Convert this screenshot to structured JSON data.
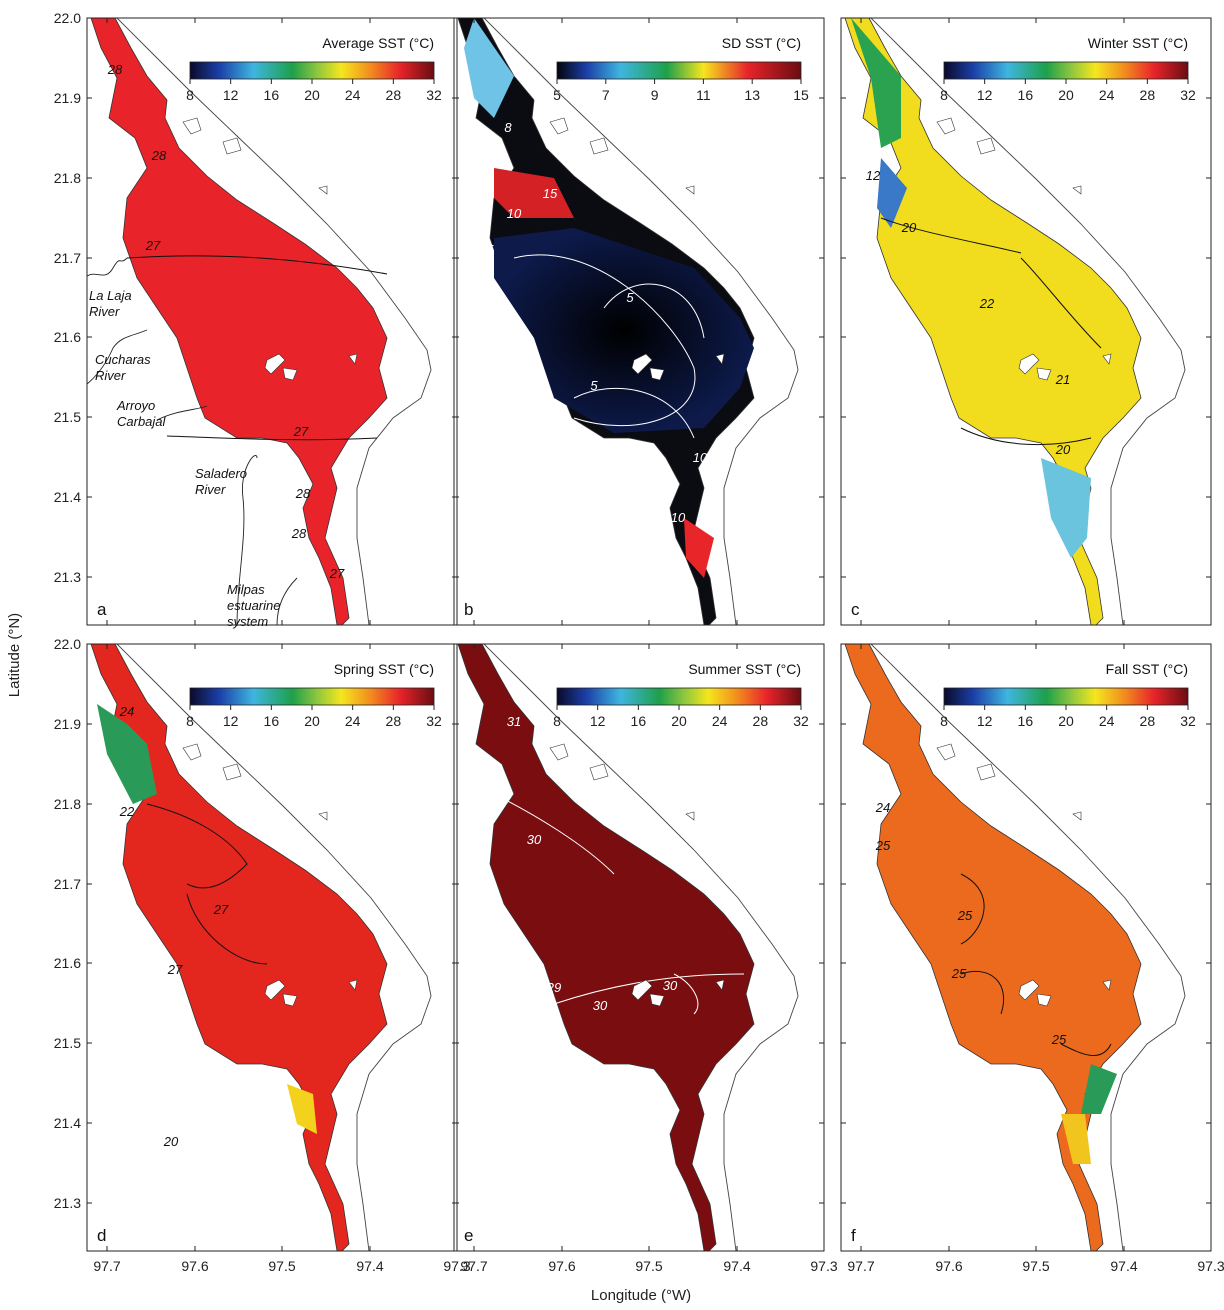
{
  "figure": {
    "y_axis_title": "Latitude (°N)",
    "x_axis_title": "Longitude (°W)",
    "lat_ticks": [
      "22.0",
      "21.9",
      "21.8",
      "21.7",
      "21.6",
      "21.5",
      "21.4",
      "21.3"
    ],
    "lon_ticks": [
      "97.7",
      "97.6",
      "97.5",
      "97.4",
      "97.3"
    ]
  },
  "panels": [
    {
      "letter": "a",
      "title": "Average SST (°C)",
      "ticks": [
        "8",
        "12",
        "16",
        "20",
        "24",
        "28",
        "32"
      ],
      "palette": "sst",
      "fill": "#e8242a",
      "contours": [
        "28",
        "28",
        "27",
        "27",
        "28",
        "28",
        "27"
      ]
    },
    {
      "letter": "b",
      "title": "SD SST (°C)",
      "ticks": [
        "5",
        "7",
        "9",
        "11",
        "13",
        "15"
      ],
      "palette": "sd",
      "fill": "#0b0b12",
      "contours": [
        "8",
        "15",
        "10",
        "5",
        "5",
        "5",
        "10",
        "10"
      ]
    },
    {
      "letter": "c",
      "title": "Winter SST (°C)",
      "ticks": [
        "8",
        "12",
        "16",
        "20",
        "24",
        "28",
        "32"
      ],
      "palette": "sst",
      "fill": "#f2dc1e",
      "contours": [
        "12",
        "20",
        "22",
        "21",
        "20"
      ]
    },
    {
      "letter": "d",
      "title": "Spring SST (°C)",
      "ticks": [
        "8",
        "12",
        "16",
        "20",
        "24",
        "28",
        "32"
      ],
      "palette": "sst",
      "fill": "#e3261e",
      "contours": [
        "24",
        "22",
        "27",
        "27",
        "20"
      ]
    },
    {
      "letter": "e",
      "title": "Summer SST (°C)",
      "ticks": [
        "8",
        "12",
        "16",
        "20",
        "24",
        "28",
        "32"
      ],
      "palette": "sst",
      "fill": "#7a0d10",
      "contours": [
        "31",
        "30",
        "29",
        "30",
        "30"
      ]
    },
    {
      "letter": "f",
      "title": "Fall SST (°C)",
      "ticks": [
        "8",
        "12",
        "16",
        "20",
        "24",
        "28",
        "32"
      ],
      "palette": "sst",
      "fill": "#ec6a1e",
      "contours": [
        "24",
        "25",
        "25",
        "25",
        "25"
      ]
    }
  ],
  "places": [
    {
      "line1": "La Laja",
      "line2": "River"
    },
    {
      "line1": "Cucharas",
      "line2": "River"
    },
    {
      "line1": "Arroyo",
      "line2": "Carbajal"
    },
    {
      "line1": "Saladero",
      "line2": "River"
    },
    {
      "line1": "Milpas",
      "line2": "estuarine",
      "line3": "system"
    }
  ],
  "colors": {
    "sst_ramp": [
      "#0a0a2a",
      "#1b3fa8",
      "#3fb5e0",
      "#1ea04a",
      "#8cc63f",
      "#f5e61e",
      "#f28c1e",
      "#e8242a",
      "#6a0d12"
    ],
    "sd_ramp": [
      "#04040a",
      "#1b3fa8",
      "#3fb5e0",
      "#1ea04a",
      "#f5e61e",
      "#e8242a",
      "#6a0d12"
    ]
  }
}
